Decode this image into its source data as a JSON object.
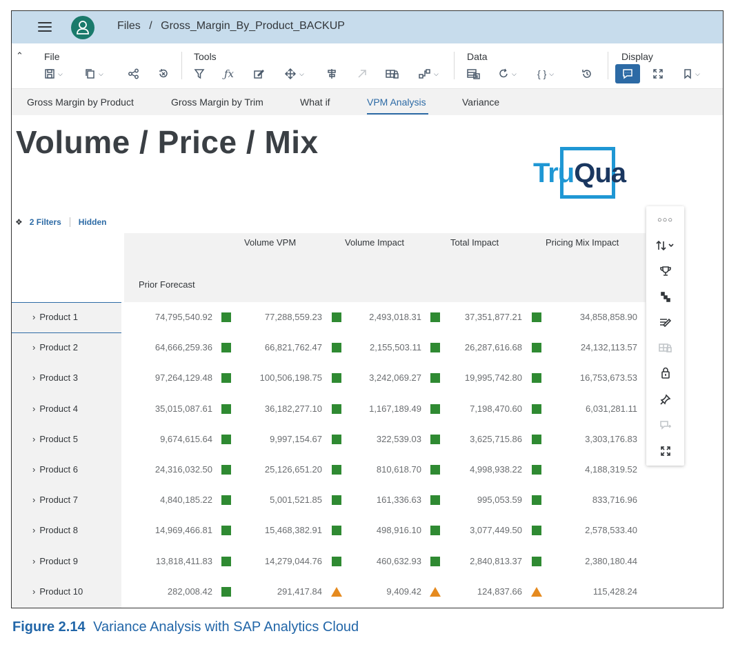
{
  "shell": {
    "breadcrumb_root": "Files",
    "breadcrumb_sep": "/",
    "breadcrumb_file": "Gross_Margin_By_Product_BACKUP"
  },
  "toolbar": {
    "groups": [
      {
        "label": "File"
      },
      {
        "label": "Tools"
      },
      {
        "label": "Data"
      },
      {
        "label": "Display"
      }
    ]
  },
  "tabs": [
    {
      "label": "Gross Margin by Product",
      "active": false
    },
    {
      "label": "Gross Margin by Trim",
      "active": false
    },
    {
      "label": "What if",
      "active": false
    },
    {
      "label": "VPM Analysis",
      "active": true
    },
    {
      "label": "Variance",
      "active": false
    }
  ],
  "page": {
    "title": "Volume / Price / Mix",
    "logo_part1": "Tru",
    "logo_part2": "Qua"
  },
  "filters": {
    "count_label": "2 Filters",
    "hidden_label": "Hidden"
  },
  "table": {
    "columns": [
      "Prior Forecast",
      "Volume VPM",
      "Volume Impact",
      "Total Impact",
      "Pricing Mix Impact"
    ],
    "rows": [
      {
        "name": "Product 1",
        "values": [
          "74,795,540.92",
          "77,288,559.23",
          "2,493,018.31",
          "37,351,877.21",
          "34,858,858.90"
        ],
        "status": [
          "good",
          "good",
          "good",
          "good"
        ]
      },
      {
        "name": "Product 2",
        "values": [
          "64,666,259.36",
          "66,821,762.47",
          "2,155,503.11",
          "26,287,616.68",
          "24,132,113.57"
        ],
        "status": [
          "good",
          "good",
          "good",
          "good"
        ]
      },
      {
        "name": "Product 3",
        "values": [
          "97,264,129.48",
          "100,506,198.75",
          "3,242,069.27",
          "19,995,742.80",
          "16,753,673.53"
        ],
        "status": [
          "good",
          "good",
          "good",
          "good"
        ]
      },
      {
        "name": "Product 4",
        "values": [
          "35,015,087.61",
          "36,182,277.10",
          "1,167,189.49",
          "7,198,470.60",
          "6,031,281.11"
        ],
        "status": [
          "good",
          "good",
          "good",
          "good"
        ]
      },
      {
        "name": "Product 5",
        "values": [
          "9,674,615.64",
          "9,997,154.67",
          "322,539.03",
          "3,625,715.86",
          "3,303,176.83"
        ],
        "status": [
          "good",
          "good",
          "good",
          "good"
        ]
      },
      {
        "name": "Product 6",
        "values": [
          "24,316,032.50",
          "25,126,651.20",
          "810,618.70",
          "4,998,938.22",
          "4,188,319.52"
        ],
        "status": [
          "good",
          "good",
          "good",
          "good"
        ]
      },
      {
        "name": "Product 7",
        "values": [
          "4,840,185.22",
          "5,001,521.85",
          "161,336.63",
          "995,053.59",
          "833,716.96"
        ],
        "status": [
          "good",
          "good",
          "good",
          "good"
        ]
      },
      {
        "name": "Product 8",
        "values": [
          "14,969,466.81",
          "15,468,382.91",
          "498,916.10",
          "3,077,449.50",
          "2,578,533.40"
        ],
        "status": [
          "good",
          "good",
          "good",
          "good"
        ]
      },
      {
        "name": "Product 9",
        "values": [
          "13,818,411.83",
          "14,279,044.76",
          "460,632.93",
          "2,840,813.37",
          "2,380,180.44"
        ],
        "status": [
          "good",
          "good",
          "good",
          "good"
        ]
      },
      {
        "name": "Product 10",
        "values": [
          "282,008.42",
          "291,417.84",
          "9,409.42",
          "124,837.66",
          "115,428.24"
        ],
        "status": [
          "good",
          "warning",
          "warning",
          "warning"
        ]
      }
    ]
  },
  "side_toolbar": {
    "icons": [
      "more-icon",
      "sort-icon",
      "trophy-icon",
      "hierarchy-icon",
      "edit-icon",
      "lock-cells-icon",
      "lock-icon",
      "pin-icon",
      "add-comment-icon",
      "fullscreen-icon"
    ]
  },
  "colors": {
    "accent": "#2c6aa5",
    "good": "#2f8a32",
    "warning": "#e58a1f",
    "shell": "#c7dcec"
  },
  "caption": {
    "figure": "Figure 2.14",
    "text": "Variance Analysis with SAP Analytics Cloud"
  }
}
